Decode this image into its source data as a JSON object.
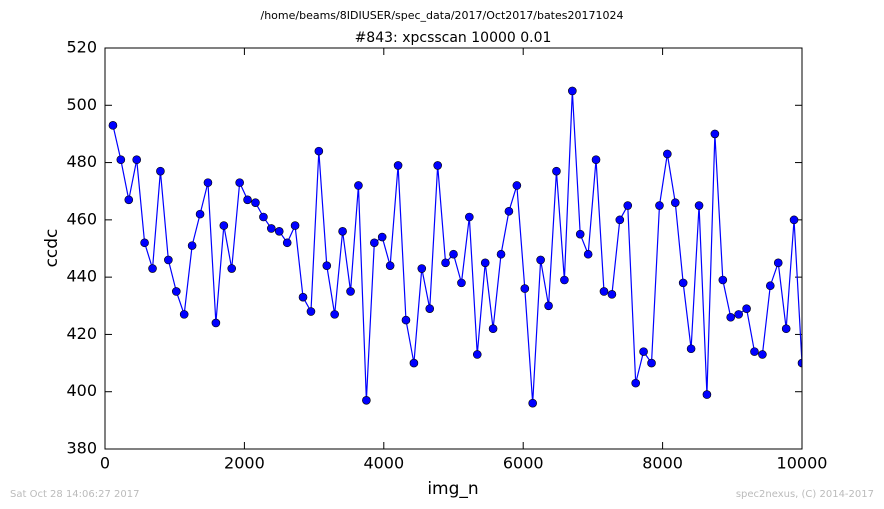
{
  "chart_data": {
    "type": "line",
    "suptitle": "/home/beams/8IDIUSER/spec_data/2017/Oct2017/bates20171024",
    "title": "#843: xpcsscan 10000 0.01",
    "xlabel": "img_n",
    "ylabel": "ccdc",
    "footer_left": "Sat Oct 28 14:06:27 2017",
    "footer_right": "spec2nexus, (C) 2014-2017",
    "color": "#0000ff",
    "marker": "circle",
    "grid": false,
    "x": [
      114,
      227,
      341,
      455,
      568,
      682,
      795,
      909,
      1023,
      1136,
      1250,
      1364,
      1477,
      1591,
      1705,
      1818,
      1932,
      2045,
      2159,
      2273,
      2386,
      2500,
      2614,
      2727,
      2841,
      2955,
      3068,
      3182,
      3295,
      3409,
      3523,
      3636,
      3750,
      3864,
      3977,
      4091,
      4205,
      4318,
      4432,
      4545,
      4659,
      4773,
      4886,
      5000,
      5114,
      5227,
      5341,
      5455,
      5568,
      5682,
      5795,
      5909,
      6023,
      6136,
      6250,
      6364,
      6477,
      6591,
      6705,
      6818,
      6932,
      7045,
      7159,
      7273,
      7386,
      7500,
      7614,
      7727,
      7841,
      7955,
      8068,
      8182,
      8295,
      8409,
      8523,
      8636,
      8750,
      8864,
      8977,
      9091,
      9205,
      9318,
      9432,
      9545,
      9659,
      9773,
      9886,
      10000
    ],
    "values": [
      493,
      481,
      467,
      481,
      452,
      443,
      477,
      446,
      435,
      427,
      451,
      462,
      473,
      424,
      458,
      443,
      473,
      467,
      466,
      461,
      457,
      456,
      452,
      458,
      433,
      428,
      484,
      444,
      427,
      456,
      435,
      472,
      397,
      452,
      454,
      444,
      479,
      425,
      410,
      443,
      429,
      479,
      445,
      448,
      438,
      461,
      413,
      445,
      422,
      448,
      463,
      472,
      436,
      396,
      446,
      430,
      477,
      439,
      505,
      455,
      448,
      481,
      435,
      434,
      460,
      465,
      403,
      414,
      410,
      465,
      483,
      466,
      438,
      415,
      465,
      399,
      490,
      439,
      426,
      427,
      429,
      414,
      413,
      437,
      445,
      422,
      460,
      410
    ],
    "xlim": [
      0,
      10000
    ],
    "xticks": [
      0,
      2000,
      4000,
      6000,
      8000,
      10000
    ],
    "ylim": [
      380,
      520
    ],
    "yticks": [
      380,
      400,
      420,
      440,
      460,
      480,
      500,
      520
    ]
  }
}
